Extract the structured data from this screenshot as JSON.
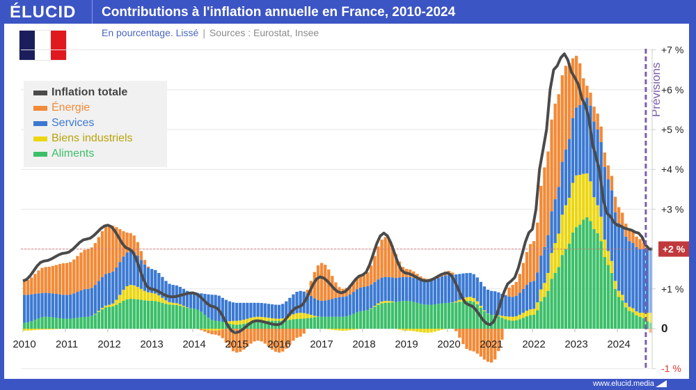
{
  "header": {
    "logo": "ÉLUCID",
    "title": "Contributions à l'inflation annuelle en France, 2010-2024"
  },
  "subtitle": {
    "unit": "En pourcentage. Lissé",
    "separator": "|",
    "sources": "Sources : Eurostat, Insee"
  },
  "flag": {
    "colors": [
      "#1b1d5c",
      "#ffffff",
      "#e0191e"
    ]
  },
  "footer": {
    "url": "www.elucid.media"
  },
  "chart_data": {
    "type": "bar",
    "stacked": true,
    "title": "Contributions à l'inflation annuelle en France, 2010-2024",
    "subtitle": "En pourcentage. Lissé",
    "xlabel": "",
    "ylabel": "",
    "x_ticks": [
      "2010",
      "2011",
      "2012",
      "2013",
      "2014",
      "2015",
      "2016",
      "2017",
      "2018",
      "2019",
      "2020",
      "2021",
      "2022",
      "2023",
      "2024"
    ],
    "y_ticks": [
      {
        "value": 7,
        "label": "+7 %"
      },
      {
        "value": 6,
        "label": "+6 %"
      },
      {
        "value": 5,
        "label": "+5 %"
      },
      {
        "value": 4,
        "label": "+4 %"
      },
      {
        "value": 3,
        "label": "+3 %"
      },
      {
        "value": 1,
        "label": "+1 %"
      },
      {
        "value": 0,
        "label": "0"
      },
      {
        "value": -1,
        "label": "-1 %"
      }
    ],
    "ylim": [
      -1,
      7
    ],
    "xlim": [
      2010.0,
      2025.0
    ],
    "grid": true,
    "legend_position": "top-left",
    "reference_line": {
      "value": 2,
      "label": "+2 %",
      "color": "#c0393b"
    },
    "forecast_marker": {
      "x": 2024.67,
      "label": "Prévisions",
      "color": "#7a5fae"
    },
    "colors": {
      "Inflation totale": "#4a4a4a",
      "Énergie": "#f28a37",
      "Services": "#3b79d2",
      "Biens industriels": "#ecd60f",
      "Aliments": "#3cbf69"
    },
    "legend": [
      "Inflation totale",
      "Énergie",
      "Services",
      "Biens industriels",
      "Aliments"
    ],
    "x": [
      2010.0,
      2010.5,
      2011.0,
      2011.5,
      2012.0,
      2012.5,
      2013.0,
      2013.5,
      2014.0,
      2014.5,
      2015.0,
      2015.5,
      2016.0,
      2016.5,
      2017.0,
      2017.5,
      2018.0,
      2018.5,
      2019.0,
      2019.5,
      2020.0,
      2020.5,
      2021.0,
      2021.5,
      2022.0,
      2022.25,
      2022.5,
      2022.75,
      2023.0,
      2023.25,
      2023.5,
      2023.75,
      2024.0,
      2024.25,
      2024.5,
      2024.75,
      2025.0
    ],
    "series": [
      {
        "name": "Aliments",
        "values": [
          0.15,
          0.3,
          0.25,
          0.3,
          0.55,
          0.75,
          0.7,
          0.6,
          0.5,
          0.2,
          0.1,
          0.2,
          0.2,
          0.25,
          0.3,
          0.3,
          0.45,
          0.65,
          0.7,
          0.6,
          0.65,
          0.7,
          0.35,
          0.2,
          0.35,
          0.8,
          1.4,
          2.0,
          2.55,
          2.8,
          2.4,
          1.6,
          0.8,
          0.45,
          0.3,
          0.15,
          0.15
        ]
      },
      {
        "name": "Biens industriels",
        "values": [
          -0.05,
          -0.02,
          0.0,
          0.0,
          0.05,
          0.35,
          0.2,
          0.05,
          0.0,
          -0.05,
          0.1,
          0.1,
          0.05,
          0.15,
          0.0,
          -0.05,
          0.0,
          0.05,
          -0.05,
          -0.1,
          0.0,
          0.1,
          0.0,
          0.1,
          0.15,
          0.35,
          0.75,
          1.1,
          1.3,
          1.1,
          0.7,
          0.35,
          0.15,
          0.1,
          0.1,
          0.25,
          0.3
        ]
      },
      {
        "name": "Services",
        "values": [
          0.7,
          0.6,
          0.6,
          0.7,
          0.8,
          0.85,
          0.6,
          0.45,
          0.4,
          0.65,
          0.45,
          0.35,
          0.35,
          0.55,
          0.4,
          0.5,
          0.6,
          0.6,
          0.6,
          0.6,
          0.7,
          0.6,
          0.6,
          0.5,
          0.7,
          0.9,
          1.1,
          1.4,
          1.7,
          1.9,
          1.9,
          1.8,
          1.7,
          1.65,
          1.6,
          1.6,
          1.5
        ]
      },
      {
        "name": "Énergie",
        "values": [
          0.35,
          0.65,
          0.8,
          1.0,
          1.2,
          0.45,
          0.0,
          0.0,
          0.0,
          -0.1,
          -0.6,
          -0.3,
          -0.6,
          -0.2,
          0.95,
          0.2,
          0.3,
          1.0,
          0.2,
          0.05,
          0.1,
          -0.55,
          -0.85,
          0.3,
          1.0,
          2.0,
          2.4,
          2.1,
          1.3,
          0.3,
          0.4,
          0.35,
          0.4,
          0.3,
          0.25,
          -0.1,
          0.0
        ]
      },
      {
        "name": "Inflation totale",
        "type": "line",
        "values": [
          1.2,
          1.7,
          1.9,
          2.25,
          2.6,
          2.0,
          1.0,
          0.8,
          0.9,
          0.55,
          -0.1,
          0.2,
          0.1,
          0.55,
          1.3,
          0.9,
          1.35,
          2.4,
          1.4,
          1.2,
          1.4,
          0.6,
          0.1,
          1.2,
          2.5,
          4.5,
          6.5,
          6.9,
          6.3,
          5.6,
          4.3,
          2.9,
          2.6,
          2.5,
          2.4,
          2.0,
          2.0
        ]
      }
    ]
  }
}
